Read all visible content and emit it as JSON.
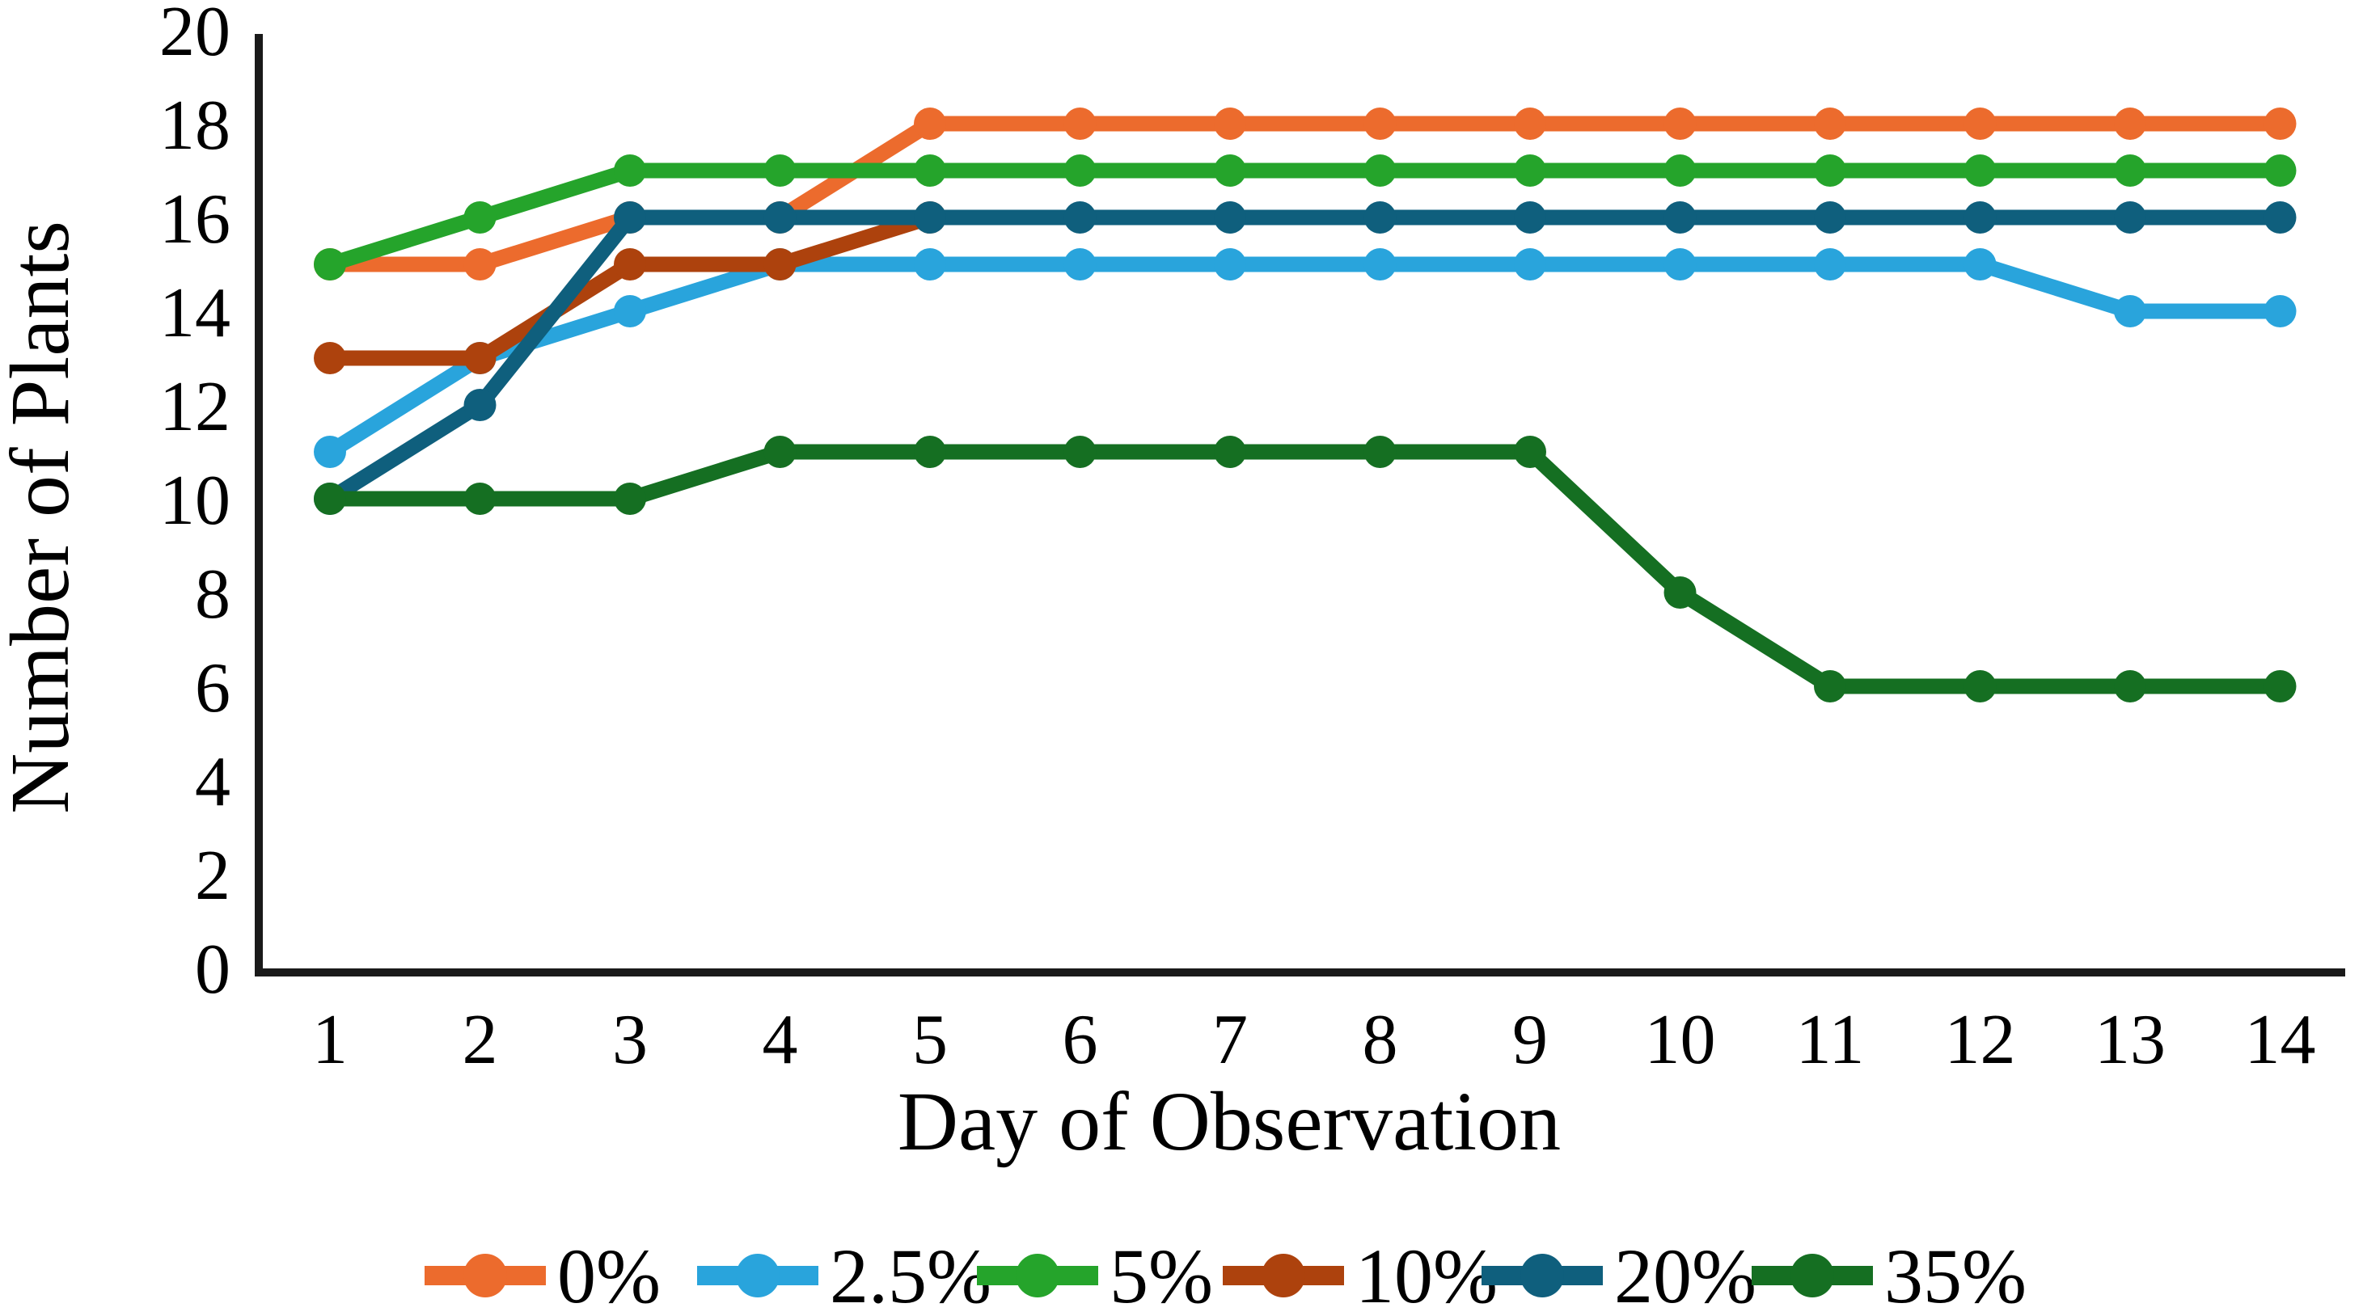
{
  "chart_data": {
    "type": "line",
    "title": "",
    "xlabel": "Day of Observation",
    "ylabel": "Number of Plants",
    "x": [
      1,
      2,
      3,
      4,
      5,
      6,
      7,
      8,
      9,
      10,
      11,
      12,
      13,
      14
    ],
    "ylim": [
      0,
      20
    ],
    "ytick_step": 2,
    "grid": false,
    "legend_position": "bottom",
    "marker": "circle",
    "series": [
      {
        "name": "0%",
        "color": "#EC6B2D",
        "values": [
          15,
          15,
          16,
          16,
          18,
          18,
          18,
          18,
          18,
          18,
          18,
          18,
          18,
          18
        ]
      },
      {
        "name": "2.5%",
        "color": "#29A4DC",
        "values": [
          11,
          13,
          14,
          15,
          15,
          15,
          15,
          15,
          15,
          15,
          15,
          15,
          14,
          14
        ]
      },
      {
        "name": "5%",
        "color": "#25A42B",
        "values": [
          15,
          16,
          17,
          17,
          17,
          17,
          17,
          17,
          17,
          17,
          17,
          17,
          17,
          17
        ]
      },
      {
        "name": "10%",
        "color": "#AD420D",
        "values": [
          13,
          13,
          15,
          15,
          16,
          null,
          null,
          null,
          null,
          null,
          null,
          null,
          null,
          null
        ]
      },
      {
        "name": "20%",
        "color": "#0F5F7D",
        "values": [
          10,
          12,
          16,
          16,
          16,
          16,
          16,
          16,
          16,
          16,
          16,
          16,
          16,
          16
        ]
      },
      {
        "name": "35%",
        "color": "#156F22",
        "values": [
          10,
          10,
          10,
          11,
          11,
          11,
          11,
          11,
          11,
          8,
          6,
          6,
          6,
          6
        ]
      }
    ],
    "axis_color": "#1a1a1a"
  }
}
